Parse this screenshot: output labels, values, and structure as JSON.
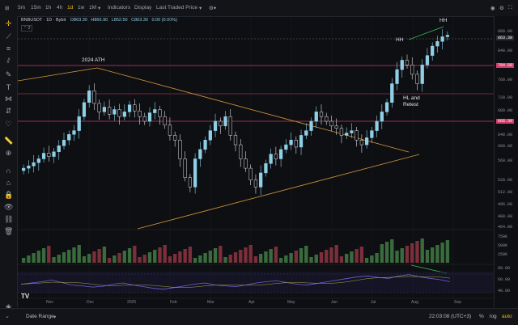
{
  "toolbar": {
    "intervals": [
      "5m",
      "15m",
      "1h",
      "4h",
      "1d",
      "1w",
      "1M"
    ],
    "active_interval": "1d",
    "indicators_label": "Indicators",
    "display_label": "Display",
    "price_mode_label": "Last Traded Price"
  },
  "legend": {
    "symbol": "BNBUSDT · 1D · Bybit",
    "open": "O863.30",
    "high": "H866.90",
    "low": "L852.50",
    "close": "C863.30",
    "change": "0.00 (0.00%)",
    "indicator_count": "2"
  },
  "annotations": {
    "ath": "2024 ATH",
    "hh_left": "HH",
    "hh_right": "HH",
    "hl_retest_1": "HL and",
    "hl_retest_2": "Retest"
  },
  "price_axis": {
    "ticks": [
      "880.00",
      "840.00",
      "800.00",
      "760.00",
      "720.00",
      "680.00",
      "640.00",
      "600.00",
      "560.00",
      "528.00",
      "512.00",
      "496.00",
      "480.00",
      "464.00"
    ],
    "current_price": "863.30",
    "level_upper": "794.60",
    "level_lower": "666.30",
    "volume_ticks": [
      "750K",
      "500K",
      "250K"
    ],
    "rsi_ticks": [
      "80.00",
      "60.00",
      "40.00"
    ]
  },
  "time_axis": [
    "Nov",
    "Dec",
    "2025",
    "Feb",
    "Mar",
    "Apr",
    "May",
    "Jun",
    "Jul",
    "Aug",
    "Sep"
  ],
  "bottom": {
    "date_range": "Date Range",
    "clock": "22:03:08 (UTC+3)",
    "pct": "%",
    "log": "log",
    "auto": "auto"
  },
  "colors": {
    "up": "#8fd0e6",
    "down": "#e0e0e0",
    "pink_level": "#d23a6a",
    "trendline": "#d89a3a",
    "green_div": "#39c25f",
    "rsi": "#6f5fd6",
    "accent": "#f0b90b"
  },
  "chart_data": {
    "type": "candlestick",
    "price_series_close": [
      580,
      585,
      592,
      600,
      612,
      605,
      615,
      628,
      640,
      652,
      660,
      690,
      720,
      745,
      718,
      700,
      710,
      695,
      705,
      690,
      700,
      715,
      702,
      690,
      680,
      698,
      705,
      690,
      672,
      650,
      640,
      600,
      560,
      540,
      600,
      620,
      640,
      660,
      680,
      670,
      690,
      650,
      630,
      600,
      580,
      555,
      540,
      570,
      590,
      610,
      600,
      620,
      630,
      640,
      625,
      650,
      660,
      680,
      700,
      690,
      680,
      670,
      665,
      650,
      655,
      660,
      640,
      630,
      645,
      660,
      680,
      700,
      720,
      760,
      790,
      810,
      800,
      780,
      760,
      800,
      820,
      840,
      850,
      860,
      863.3
    ],
    "resistance_levels": [
      794.6,
      666.3
    ],
    "rsi_values": [
      52,
      55,
      58,
      62,
      56,
      50,
      48,
      45,
      47,
      52,
      55,
      50,
      46,
      42,
      40,
      44,
      48,
      52,
      55,
      50,
      48,
      46,
      50,
      55,
      58,
      60,
      56,
      52,
      50,
      54,
      58,
      62,
      66,
      70,
      72,
      68,
      66,
      72,
      75,
      70,
      66,
      63,
      58
    ],
    "volume_ticks": [
      "750K",
      "500K",
      "250K"
    ]
  }
}
